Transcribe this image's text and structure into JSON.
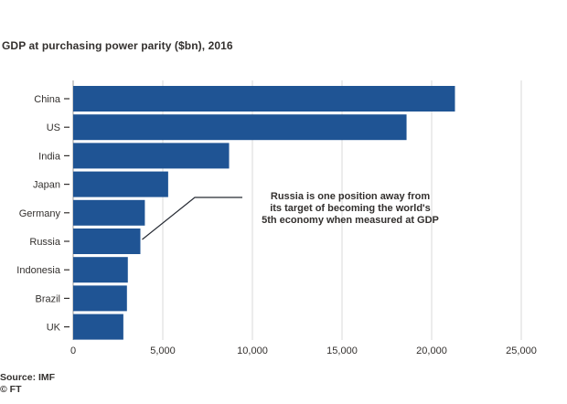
{
  "chart_data": {
    "type": "bar",
    "orientation": "horizontal",
    "title": "GDP at purchasing power parity ($bn), 2016",
    "categories": [
      "China",
      "US",
      "India",
      "Japan",
      "Germany",
      "Russia",
      "Indonesia",
      "Brazil",
      "UK"
    ],
    "values": [
      21300,
      18600,
      8700,
      5300,
      4000,
      3750,
      3050,
      3000,
      2800
    ],
    "xlim": [
      0,
      25000
    ],
    "xticks": [
      0,
      5000,
      10000,
      15000,
      20000,
      25000
    ],
    "xtick_labels": [
      "0",
      "5,000",
      "10,000",
      "15,000",
      "20,000",
      "25,000"
    ],
    "grid": true,
    "bar_color": "#1f5494",
    "annotation": {
      "target": "Russia",
      "text_lines": [
        "Russia is one position away from",
        "its target of becoming the world's",
        "5th economy when measured at GDP"
      ]
    }
  },
  "footer": {
    "source": "Source: IMF",
    "credit": "© FT"
  },
  "colors": {
    "background": "#ffffff",
    "bar": "#1f5494",
    "grid": "#d9d9d9",
    "text": "#33302e"
  }
}
